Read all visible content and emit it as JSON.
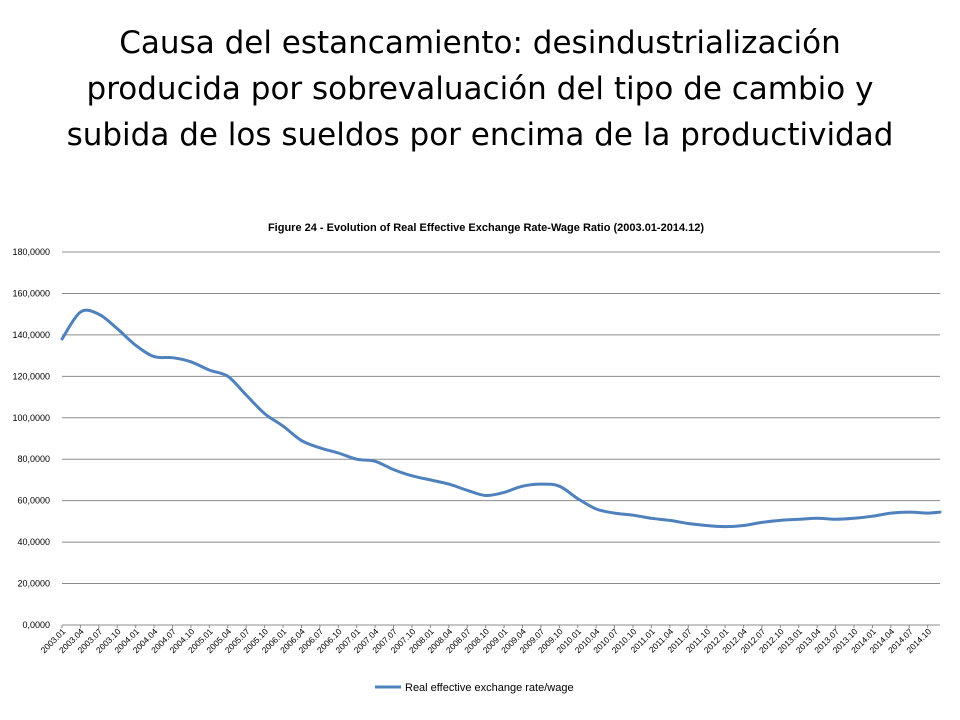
{
  "slide": {
    "title_lines": [
      "Causa del estancamiento: desindustrialización",
      "producida por sobrevaluación del tipo de cambio y",
      "subida de los sueldos por encima de la productividad"
    ]
  },
  "chart_data": {
    "type": "line",
    "title": "Figure 24 - Evolution of Real Effective Exchange Rate-Wage Ratio (2003.01-2014.12)",
    "xlabel": "",
    "ylabel": "",
    "ylim": [
      0,
      180
    ],
    "y_ticks": [
      "0,0000",
      "20,0000",
      "40,0000",
      "60,0000",
      "80,0000",
      "100,0000",
      "120,0000",
      "140,0000",
      "160,0000",
      "180,0000"
    ],
    "x_tick_labels": [
      "2003.01",
      "2003.04",
      "2003.07",
      "2003.10",
      "2004.01",
      "2004.04",
      "2004.07",
      "2004.10",
      "2005.01",
      "2005.04",
      "2005.07",
      "2005.10",
      "2006.01",
      "2006.04",
      "2006.07",
      "2006.10",
      "2007.01",
      "2007.04",
      "2007.07",
      "2007.10",
      "2008.01",
      "2008.04",
      "2008.07",
      "2008.10",
      "2009.01",
      "2009.04",
      "2009.07",
      "2009.10",
      "2010.01",
      "2010.04",
      "2010.07",
      "2010.10",
      "2011.01",
      "2011.04",
      "2011.07",
      "2011.10",
      "2012.01",
      "2012.04",
      "2012.07",
      "2012.10",
      "2013.01",
      "2013.04",
      "2013.07",
      "2013.10",
      "2014.01",
      "2014.04",
      "2014.07",
      "2014.10"
    ],
    "grid": true,
    "legend": "bottom-center",
    "series": [
      {
        "name": "Real effective exchange rate/wage",
        "color": "#4F81BD",
        "x": [
          "2003.01",
          "2003.04",
          "2003.07",
          "2003.10",
          "2004.01",
          "2004.04",
          "2004.07",
          "2004.10",
          "2005.01",
          "2005.04",
          "2005.07",
          "2005.10",
          "2006.01",
          "2006.04",
          "2006.07",
          "2006.10",
          "2007.01",
          "2007.04",
          "2007.07",
          "2007.10",
          "2008.01",
          "2008.04",
          "2008.07",
          "2008.10",
          "2009.01",
          "2009.04",
          "2009.07",
          "2009.10",
          "2010.01",
          "2010.04",
          "2010.07",
          "2010.10",
          "2011.01",
          "2011.04",
          "2011.07",
          "2011.10",
          "2012.01",
          "2012.04",
          "2012.07",
          "2012.10",
          "2013.01",
          "2013.04",
          "2013.07",
          "2013.10",
          "2014.01",
          "2014.04",
          "2014.07",
          "2014.10",
          "2014.12"
        ],
        "values": [
          138,
          151,
          150,
          143,
          135,
          129.5,
          129,
          127,
          123,
          120,
          111,
          102,
          96,
          89,
          85.5,
          83,
          80,
          79,
          75,
          72,
          70,
          68,
          65,
          62.5,
          64,
          67,
          68,
          67,
          61,
          56,
          54,
          53,
          51.5,
          50.5,
          49,
          48,
          47.5,
          48,
          49.5,
          50.5,
          51,
          51.5,
          51,
          51.5,
          52.5,
          54,
          54.5,
          54,
          54.5
        ]
      }
    ]
  }
}
